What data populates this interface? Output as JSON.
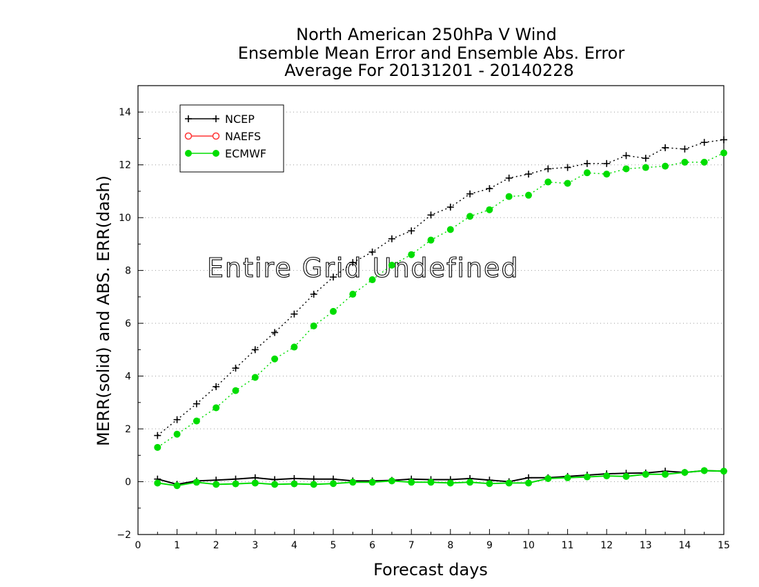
{
  "chart_data": {
    "type": "line",
    "title": [
      "North American 250hPa V Wind",
      "Ensemble Mean Error and Ensemble Abs. Error",
      "Average For 20131201 - 20140228"
    ],
    "xlabel": "Forecast days",
    "ylabel": "MERR(solid) and ABS. ERR(dash)",
    "xlim": [
      0,
      15
    ],
    "ylim": [
      -2,
      15
    ],
    "xticks": [
      0,
      1,
      2,
      3,
      4,
      5,
      6,
      7,
      8,
      9,
      10,
      11,
      12,
      13,
      14,
      15
    ],
    "yticks": [
      -2,
      0,
      2,
      4,
      6,
      8,
      10,
      12,
      14
    ],
    "grid": "horizontal dotted",
    "legend_position": "top-left",
    "annotation": "Entire Grid Undefined",
    "x": [
      0.5,
      1,
      1.5,
      2,
      2.5,
      3,
      3.5,
      4,
      4.5,
      5,
      5.5,
      6,
      6.5,
      7,
      7.5,
      8,
      8.5,
      9,
      9.5,
      10,
      10.5,
      11,
      11.5,
      12,
      12.5,
      13,
      13.5,
      14,
      14.5,
      15
    ],
    "series": [
      {
        "name": "NCEP",
        "color": "#000000",
        "marker": "plus",
        "merr": [
          0.1,
          -0.1,
          0.03,
          0.06,
          0.1,
          0.15,
          0.08,
          0.12,
          0.1,
          0.1,
          0.03,
          0.03,
          0.05,
          0.1,
          0.08,
          0.08,
          0.12,
          0.06,
          0.0,
          0.15,
          0.15,
          0.2,
          0.25,
          0.3,
          0.32,
          0.33,
          0.4,
          0.35,
          0.42,
          0.4
        ],
        "abs_err": [
          1.75,
          2.35,
          2.95,
          3.6,
          4.3,
          5.0,
          5.65,
          6.35,
          7.1,
          7.75,
          8.3,
          8.7,
          9.2,
          9.5,
          10.1,
          10.4,
          10.9,
          11.1,
          11.5,
          11.65,
          11.85,
          11.9,
          12.05,
          12.05,
          12.35,
          12.25,
          12.65,
          12.6,
          12.85,
          12.95
        ]
      },
      {
        "name": "NAEFS",
        "color": "#ff3333",
        "marker": "open-circle",
        "merr": [],
        "abs_err": []
      },
      {
        "name": "ECMWF",
        "color": "#00dd00",
        "marker": "filled-circle",
        "merr": [
          -0.05,
          -0.15,
          -0.02,
          -0.1,
          -0.08,
          -0.05,
          -0.1,
          -0.08,
          -0.1,
          -0.07,
          -0.02,
          -0.02,
          0.03,
          -0.02,
          -0.02,
          -0.05,
          -0.02,
          -0.07,
          -0.05,
          -0.05,
          0.12,
          0.15,
          0.18,
          0.22,
          0.2,
          0.28,
          0.28,
          0.35,
          0.42,
          0.4
        ],
        "abs_err": [
          1.3,
          1.8,
          2.3,
          2.8,
          3.45,
          3.95,
          4.65,
          5.1,
          5.9,
          6.45,
          7.1,
          7.65,
          8.2,
          8.6,
          9.15,
          9.55,
          10.05,
          10.3,
          10.8,
          10.85,
          11.35,
          11.3,
          11.7,
          11.65,
          11.85,
          11.9,
          11.95,
          12.1,
          12.1,
          12.45
        ]
      }
    ]
  }
}
